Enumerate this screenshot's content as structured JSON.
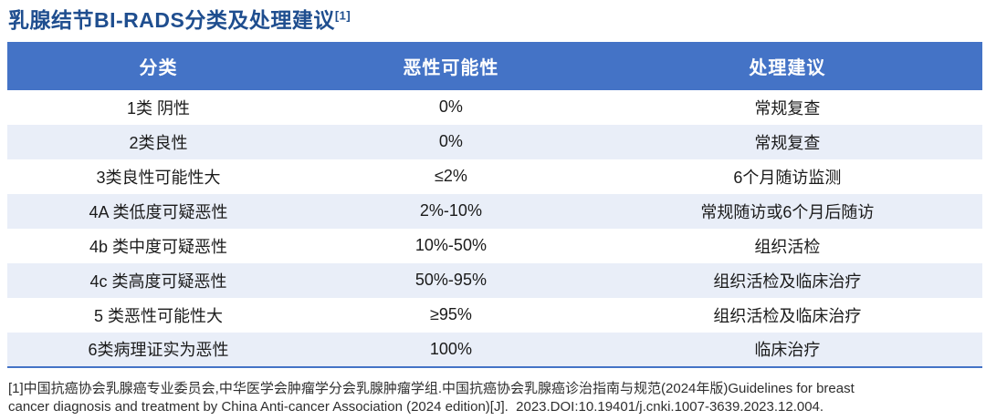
{
  "page": {
    "title": "乳腺结节BI-RADS分类及处理建议",
    "title_superscript": "[1]"
  },
  "table": {
    "headers": [
      "分类",
      "恶性可能性",
      "处理建议"
    ],
    "rows": [
      {
        "category": "1类 阴性",
        "probability": "0%",
        "advice": "常规复查"
      },
      {
        "category": "2类良性",
        "probability": "0%",
        "advice": "常规复查"
      },
      {
        "category": "3类良性可能性大",
        "probability": "≤2%",
        "advice": "6个月随访监测"
      },
      {
        "category": "4A 类低度可疑恶性",
        "probability": "2%-10%",
        "advice": "常规随访或6个月后随访"
      },
      {
        "category": "4b 类中度可疑恶性",
        "probability": "10%-50%",
        "advice": "组织活检"
      },
      {
        "category": "4c 类高度可疑恶性",
        "probability": "50%-95%",
        "advice": "组织活检及临床治疗"
      },
      {
        "category": "5 类恶性可能性大",
        "probability": "≥95%",
        "advice": "组织活检及临床治疗"
      },
      {
        "category": "6类病理证实为恶性",
        "probability": "100%",
        "advice": "临床治疗"
      }
    ]
  },
  "footnote": {
    "line1": "[1]中国抗癌协会乳腺癌专业委员会,中华医学会肿瘤学分会乳腺肿瘤学组.中国抗癌协会乳腺癌诊治指南与规范(2024年版)Guidelines for breast",
    "line2": "cancer diagnosis and treatment by China Anti-cancer Association (2024 edition)[J].  2023.DOI:10.19401/j.cnki.1007-3639.2023.12.004."
  },
  "colors": {
    "header_bg": "#4473C6",
    "row_alt_bg": "#E9EEF8",
    "title_color": "#1F4E8F",
    "bottom_line": "#4473C6",
    "body_text": "#1b1b1b",
    "footnote_text": "#2e2e2e"
  }
}
